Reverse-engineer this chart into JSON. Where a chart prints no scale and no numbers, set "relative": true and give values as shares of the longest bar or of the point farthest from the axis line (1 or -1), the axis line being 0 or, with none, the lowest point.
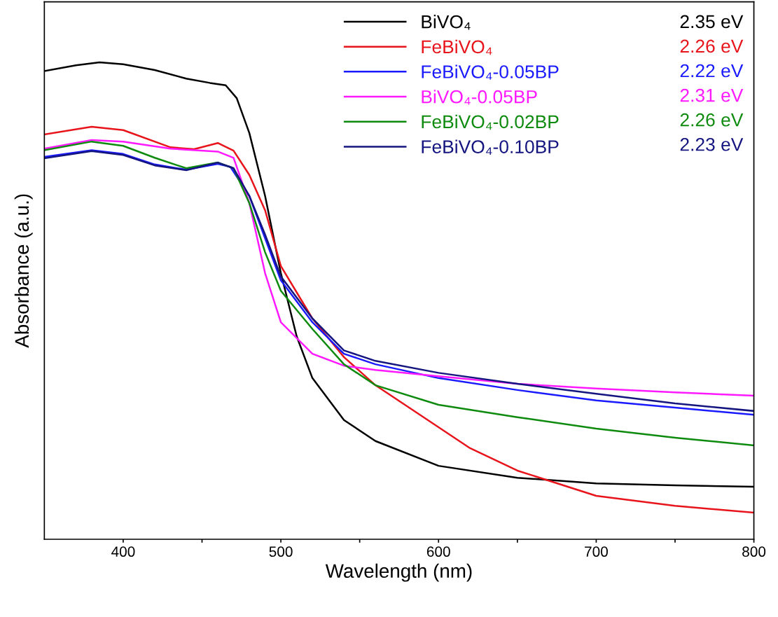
{
  "chart_data": {
    "type": "line",
    "relative": true,
    "xlabel": "Wavelength (nm)",
    "ylabel": "Absorbance (a.u.)",
    "xlim": [
      350,
      800
    ],
    "xticks": [
      400,
      {
        "value": 450,
        "label": null
      },
      500,
      {
        "value": 550,
        "label": null
      },
      600,
      {
        "value": 650,
        "label": null
      },
      700,
      {
        "value": 750,
        "label": null
      },
      800
    ],
    "tick_labels": "x",
    "grid": false,
    "legend": "top right",
    "line_style": "solid",
    "marker": "none",
    "x": [
      350,
      370,
      385,
      400,
      420,
      440,
      455,
      465,
      472,
      480,
      490,
      500,
      510,
      520,
      540,
      560,
      600,
      650,
      700,
      750,
      800
    ],
    "series": [
      {
        "name": "BiVO₄",
        "color": "#000000",
        "values": [
          0.982,
          0.994,
          1.0,
          0.996,
          0.984,
          0.966,
          0.957,
          0.952,
          0.925,
          0.852,
          0.72,
          0.558,
          0.426,
          0.338,
          0.25,
          0.206,
          0.154,
          0.129,
          0.117,
          0.113,
          0.11
        ]
      },
      {
        "name": "FeBiVO₄",
        "color": "#e8141b",
        "x": [
          350,
          380,
          400,
          430,
          445,
          460,
          470,
          480,
          490,
          500,
          520,
          540,
          560,
          600,
          620,
          650,
          700,
          750,
          800
        ],
        "values": [
          0.849,
          0.865,
          0.858,
          0.822,
          0.818,
          0.831,
          0.815,
          0.764,
          0.69,
          0.573,
          0.463,
          0.382,
          0.323,
          0.235,
          0.191,
          0.144,
          0.091,
          0.07,
          0.056
        ]
      },
      {
        "name": "FeBiVO₄-0.05BP",
        "color": "#1a1aff",
        "x": [
          350,
          380,
          400,
          420,
          440,
          460,
          468,
          480,
          490,
          500,
          520,
          540,
          560,
          600,
          650,
          700,
          750,
          800
        ],
        "values": [
          0.802,
          0.816,
          0.808,
          0.786,
          0.775,
          0.787,
          0.781,
          0.72,
          0.631,
          0.543,
          0.455,
          0.389,
          0.367,
          0.338,
          0.313,
          0.291,
          0.276,
          0.261
        ]
      },
      {
        "name": "BiVO₄-0.05BP",
        "color": "#ff19ff",
        "x": [
          350,
          380,
          400,
          430,
          460,
          470,
          480,
          490,
          500,
          520,
          540,
          560,
          600,
          650,
          700,
          750,
          800
        ],
        "values": [
          0.819,
          0.837,
          0.834,
          0.819,
          0.813,
          0.8,
          0.705,
          0.558,
          0.455,
          0.389,
          0.364,
          0.355,
          0.342,
          0.326,
          0.316,
          0.308,
          0.301
        ]
      },
      {
        "name": "FeBiVO₄-0.02BP",
        "color": "#0e8a0e",
        "x": [
          350,
          380,
          400,
          420,
          440,
          460,
          470,
          480,
          490,
          500,
          520,
          540,
          560,
          600,
          650,
          700,
          750,
          800
        ],
        "values": [
          0.816,
          0.834,
          0.825,
          0.8,
          0.778,
          0.79,
          0.778,
          0.705,
          0.602,
          0.521,
          0.441,
          0.367,
          0.323,
          0.282,
          0.256,
          0.232,
          0.213,
          0.197
        ]
      },
      {
        "name": "FeBiVO₄-0.10BP",
        "color": "#151580",
        "x": [
          350,
          380,
          400,
          420,
          440,
          460,
          470,
          480,
          490,
          500,
          520,
          540,
          560,
          600,
          650,
          700,
          750,
          800
        ],
        "values": [
          0.799,
          0.814,
          0.806,
          0.784,
          0.774,
          0.79,
          0.778,
          0.72,
          0.639,
          0.551,
          0.463,
          0.396,
          0.374,
          0.349,
          0.326,
          0.305,
          0.285,
          0.269
        ]
      }
    ],
    "annotations": [
      "2.35 eV",
      "2.26 eV",
      "2.22 eV",
      "2.31 eV",
      "2.26 eV",
      "2.23 eV"
    ]
  }
}
